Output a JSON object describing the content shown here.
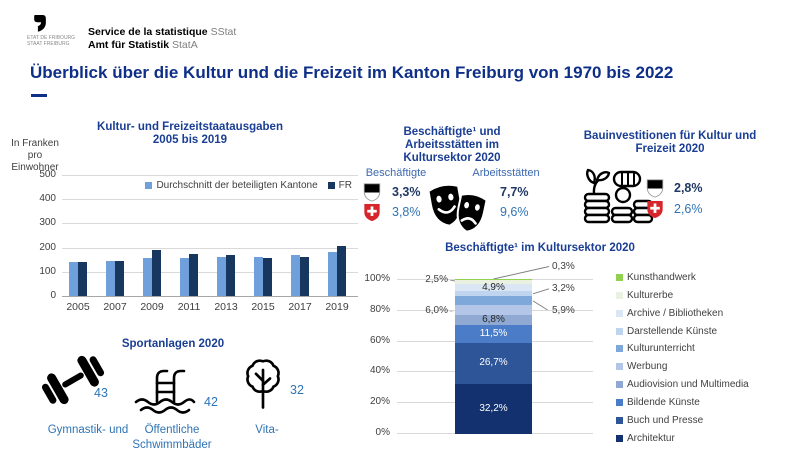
{
  "header": {
    "logo_caption_line1": "ETAT DE FRIBOURG",
    "logo_caption_line2": "STAAT FREIBURG",
    "org_line1_bold": "Service de la statistique",
    "org_line1_abbr": "SStat",
    "org_line2_bold": "Amt für Statistik",
    "org_line2_abbr": "StatA"
  },
  "title": "Überblick über die Kultur und die Freizeit im Kanton Freiburg von 1970 bis 2022",
  "colors": {
    "title_navy": "#0e2f87",
    "section_header_blue": "#1a3e94",
    "value_navy": "#1f3864",
    "value_blue": "#2e74b5",
    "light_bar_blue": "#6fa0dc",
    "dark_bar_navy": "#17375e",
    "swiss_red": "#d6252b",
    "gridline_gray": "#d9d9d9"
  },
  "chart_data": [
    {
      "type": "bar",
      "title": "Kultur- und Freizeitstaatausgaben",
      "subtitle": "2005 bis 2019",
      "ylabel": "In Franken pro Einwohner",
      "categories": [
        "2005",
        "2007",
        "2009",
        "2011",
        "2013",
        "2015",
        "2017",
        "2019"
      ],
      "series": [
        {
          "name": "Durchschnitt der beteiligten Kantone",
          "color": "#6fa0dc",
          "values": [
            142,
            144,
            158,
            158,
            162,
            163,
            170,
            180
          ]
        },
        {
          "name": "FR",
          "color": "#17375e",
          "values": [
            140,
            143,
            192,
            175,
            170,
            158,
            160,
            208
          ]
        }
      ],
      "ylim": [
        0,
        500
      ],
      "yticks": [
        500,
        400,
        300,
        200,
        100,
        0
      ],
      "grid": true,
      "legend_position": "top-right"
    },
    {
      "type": "stacked-bar",
      "title": "Beschäftigte¹ im Kultursektor 2020",
      "ylim": [
        0,
        100
      ],
      "yticks": [
        "100%",
        "80%",
        "60%",
        "40%",
        "20%",
        "0%"
      ],
      "segments_top_to_bottom": [
        {
          "name": "Kunsthandwerk",
          "value": 0.3,
          "display": "0,3%",
          "color": "#92d050",
          "label": "callout-right"
        },
        {
          "name": "Kulturerbe",
          "value": 2.5,
          "display": "2,5%",
          "color": "#ebf1e1",
          "label": "callout-left"
        },
        {
          "name": "Archive / Bibliotheken",
          "value": 4.9,
          "display": "4,9%",
          "color": "#dae6f4",
          "label": "inside-dark"
        },
        {
          "name": "Darstellende Künste",
          "value": 3.2,
          "display": "3,2%",
          "color": "#bed4ef",
          "label": "callout-right"
        },
        {
          "name": "Kulturunterricht",
          "value": 5.9,
          "display": "5,9%",
          "color": "#7fa8da",
          "label": "callout-right"
        },
        {
          "name": "Werbung",
          "value": 6.0,
          "display": "6,0%",
          "color": "#b3c6e7",
          "label": "callout-left"
        },
        {
          "name": "Audiovision und Multimedia",
          "value": 6.8,
          "display": "6,8%",
          "color": "#8fa9d2",
          "label": "inside-dark"
        },
        {
          "name": "Bildende Künste",
          "value": 11.5,
          "display": "11,5%",
          "color": "#4a7cc7",
          "label": "inside-white"
        },
        {
          "name": "Buch und Presse",
          "value": 26.7,
          "display": "26,7%",
          "color": "#2e5597",
          "label": "inside-white"
        },
        {
          "name": "Architektur",
          "value": 32.2,
          "display": "32,2%",
          "color": "#12316e",
          "label": "inside-white"
        }
      ],
      "legend_position": "right"
    }
  ],
  "employment_panel": {
    "title_line1": "Beschäftigte¹ und",
    "title_line2": "Arbeitsstätten im",
    "title_line3": "Kultursektor 2020",
    "col_left": "Beschäftigte",
    "col_right": "Arbeitsstätten",
    "fr_beschaeftigte": "3,3%",
    "fr_arbeitsstaetten": "7,7%",
    "ch_beschaeftigte": "3,8%",
    "ch_arbeitsstaetten": "9,6%"
  },
  "investment_panel": {
    "title_line1": "Bauinvestitionen für Kultur und",
    "title_line2": "Freizeit 2020",
    "fr_value": "2,8%",
    "ch_value": "2,6%"
  },
  "sports_panel": {
    "title": "Sportanlagen 2020",
    "items": [
      {
        "icon": "dumbbell-icon",
        "count": "43",
        "label": "Gymnastik- und",
        "label2": ""
      },
      {
        "icon": "swimming-pool-icon",
        "count": "42",
        "label": "Öffentliche",
        "label2": "Schwimmbäder"
      },
      {
        "icon": "tree-icon",
        "count": "32",
        "label": "Vita-",
        "label2": ""
      }
    ]
  }
}
